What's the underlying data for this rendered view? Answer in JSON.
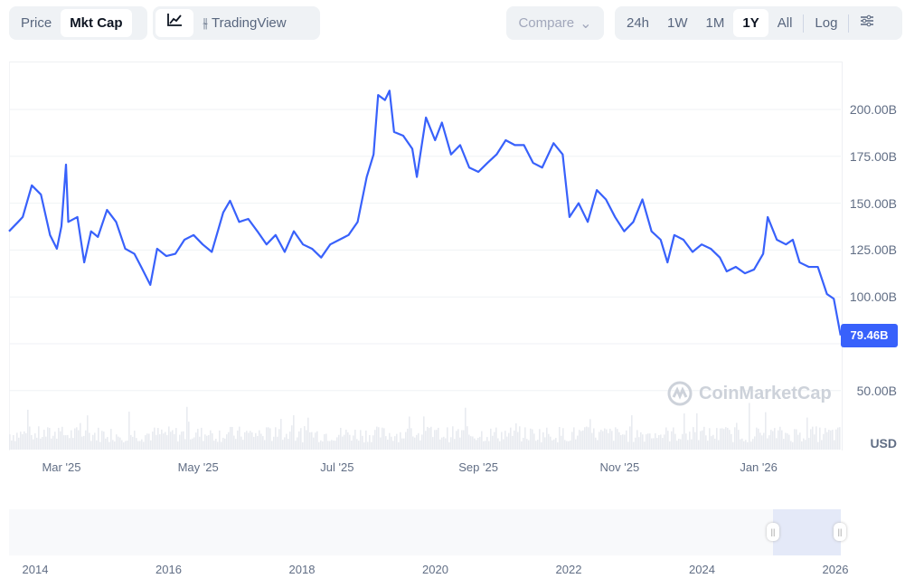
{
  "toolbar": {
    "price": "Price",
    "mkt_cap": "Mkt Cap",
    "tradingview": "TradingView",
    "compare": "Compare",
    "ranges": [
      "24h",
      "1W",
      "1M",
      "1Y",
      "All"
    ],
    "log": "Log",
    "active_range": "1Y",
    "active_metric": "Mkt Cap"
  },
  "watermark": "CoinMarketCap",
  "chart_data": {
    "type": "line",
    "title": "",
    "xlabel": "",
    "ylabel": "USD",
    "currency_label": "USD",
    "x_unit": "days since 2025-02-10",
    "ylim": [
      37.5,
      212.5
    ],
    "y_ticks": [
      "200.00B",
      "175.00B",
      "150.00B",
      "125.00B",
      "100.00B",
      "50.00B"
    ],
    "y_tick_values": [
      200,
      175,
      150,
      125,
      100,
      50
    ],
    "x_ticks": [
      "Mar '25",
      "May '25",
      "Jul '25",
      "Sep '25",
      "Nov '25",
      "Jan '26"
    ],
    "x_tick_days": [
      23,
      83,
      144,
      206,
      268,
      329
    ],
    "last_value_label": "79.46B",
    "series": [
      {
        "name": "Market Cap (B USD)",
        "color": "#3861fb",
        "x": [
          0,
          4,
          6,
          10,
          14,
          18,
          21,
          23,
          25,
          26,
          30,
          33,
          36,
          39,
          43,
          47,
          51,
          55,
          58,
          62,
          65,
          69,
          73,
          77,
          81,
          85,
          89,
          94,
          97,
          101,
          105,
          109,
          113,
          117,
          121,
          125,
          129,
          133,
          137,
          141,
          145,
          149,
          153,
          157,
          160,
          162,
          165,
          167,
          169,
          173,
          177,
          179,
          183,
          187,
          190,
          194,
          198,
          202,
          206,
          210,
          214,
          218,
          222,
          226,
          230,
          234,
          239,
          243,
          246,
          250,
          254,
          258,
          262,
          266,
          270,
          274,
          278,
          282,
          286,
          289,
          292,
          296,
          300,
          304,
          308,
          312,
          315,
          319,
          323,
          327,
          331,
          333,
          337,
          341,
          344,
          347,
          351,
          355,
          359,
          362,
          365
        ],
        "values": [
          135,
          140,
          142.6,
          159.5,
          154.6,
          133,
          125.7,
          137.7,
          170.6,
          140,
          142.6,
          118.4,
          135,
          132,
          146.4,
          140,
          125.7,
          123,
          116,
          106.4,
          125.7,
          121.8,
          123,
          130.5,
          133,
          128,
          124,
          145,
          151.3,
          140,
          141.6,
          135,
          128,
          133,
          124,
          135,
          128,
          125.7,
          121,
          128,
          130.5,
          133,
          140,
          164,
          176,
          207.7,
          205,
          210,
          188,
          186,
          179,
          164,
          195.7,
          183.6,
          193,
          176,
          181,
          169,
          166.7,
          171.5,
          176,
          183.6,
          181,
          181,
          171.5,
          169,
          182,
          176,
          142.6,
          150,
          140,
          157,
          152,
          142.6,
          135,
          140,
          152,
          135,
          130.5,
          118.4,
          133,
          130.5,
          124,
          128,
          125.7,
          121,
          113.6,
          116,
          112.6,
          114.6,
          123,
          142.6,
          130.5,
          128,
          130.5,
          118.4,
          116,
          116,
          101.5,
          99,
          79.46
        ]
      }
    ],
    "navigator_years": [
      "2014",
      "2016",
      "2018",
      "2020",
      "2022",
      "2024",
      "2026"
    ],
    "grid": true
  }
}
